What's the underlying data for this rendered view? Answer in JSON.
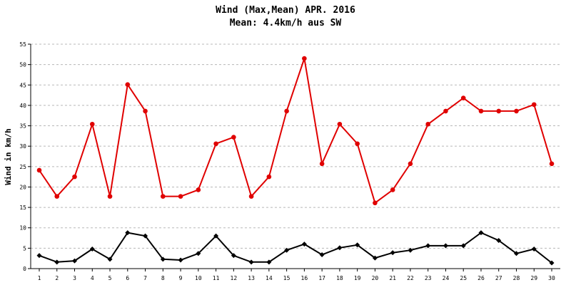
{
  "chart_data": {
    "type": "line",
    "title": "Wind (Max,Mean) APR. 2016",
    "subtitle": "Mean: 4.4km/h aus SW",
    "ylabel": "Wind in km/h",
    "xlabel": "",
    "ylim": [
      0,
      55
    ],
    "yticks": [
      0,
      5,
      10,
      15,
      20,
      25,
      30,
      35,
      40,
      45,
      50,
      55
    ],
    "x": [
      1,
      2,
      3,
      4,
      5,
      6,
      7,
      8,
      9,
      10,
      11,
      12,
      13,
      14,
      15,
      16,
      17,
      18,
      19,
      20,
      21,
      22,
      23,
      24,
      25,
      26,
      27,
      28,
      29,
      30
    ],
    "grid": true,
    "series": [
      {
        "color": "#e00000",
        "marker": "circle",
        "values": [
          24.1,
          17.7,
          22.5,
          35.4,
          17.7,
          45.1,
          38.6,
          17.7,
          17.7,
          19.3,
          30.6,
          32.2,
          17.7,
          22.5,
          38.6,
          51.5,
          25.7,
          35.4,
          30.6,
          16.1,
          19.3,
          25.7,
          35.4,
          38.6,
          41.8,
          38.6,
          38.6,
          38.6,
          40.2,
          25.7
        ]
      },
      {
        "color": "#000000",
        "marker": "diamond",
        "values": [
          3.2,
          1.6,
          1.9,
          4.8,
          2.3,
          8.8,
          8.0,
          2.3,
          2.1,
          3.7,
          8.0,
          3.2,
          1.6,
          1.6,
          4.5,
          6.0,
          3.4,
          5.1,
          5.8,
          2.6,
          3.9,
          4.5,
          5.6,
          5.6,
          5.6,
          8.8,
          6.9,
          3.7,
          4.8,
          1.4
        ]
      }
    ]
  }
}
